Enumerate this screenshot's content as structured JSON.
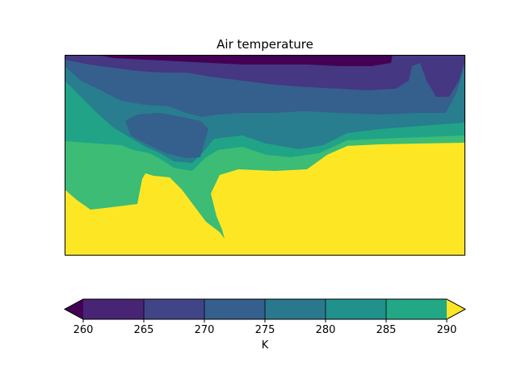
{
  "chart_data": {
    "type": "heatmap",
    "title": "Air temperature",
    "subtype": "filled-contour map",
    "colorbar": {
      "label": "K",
      "levels": [
        260,
        265,
        270,
        275,
        280,
        285,
        290
      ],
      "tick_labels": [
        "260",
        "265",
        "270",
        "275",
        "280",
        "285",
        "290"
      ],
      "extend": "both",
      "colors": [
        "#440154",
        "#482475",
        "#414487",
        "#355f8d",
        "#2a788e",
        "#21918c",
        "#22a884",
        "#44bf70",
        "#fde725"
      ],
      "orientation": "horizontal"
    },
    "regions": [
      {
        "range": "above 290",
        "color": "#fde725"
      },
      {
        "range": "285-290",
        "color": "#3cbc75"
      },
      {
        "range": "280-285",
        "color": "#20a386"
      },
      {
        "range": "275-280",
        "color": "#287d8e"
      },
      {
        "range": "270-275",
        "color": "#355f8d"
      },
      {
        "range": "265-270",
        "color": "#453781"
      },
      {
        "range": "below 265",
        "color": "#440154"
      }
    ],
    "axes_ticks": false,
    "grid": false
  }
}
